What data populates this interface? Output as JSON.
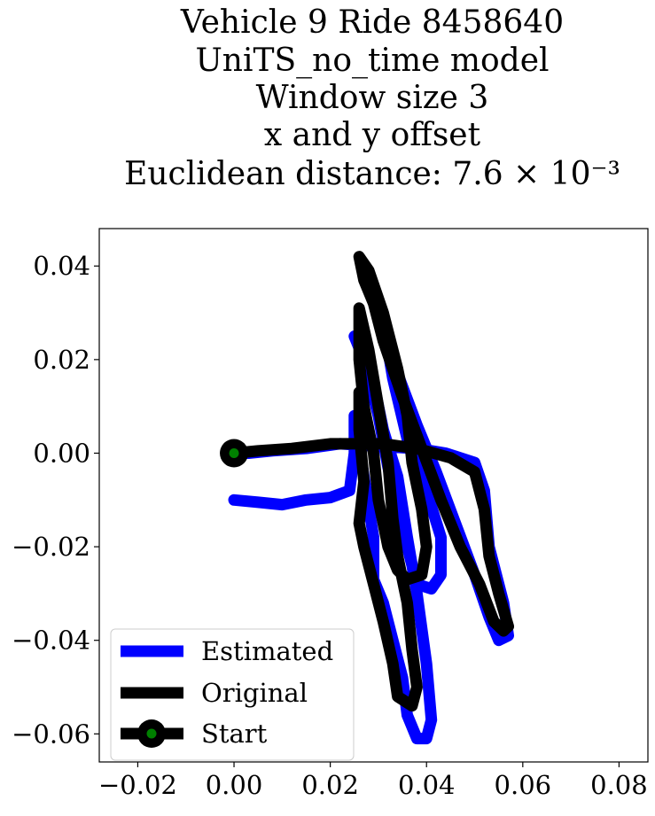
{
  "chart_data": {
    "type": "line",
    "title_lines": [
      "Vehicle 9 Ride 8458640",
      "UniTS_no_time model",
      "Window size 3",
      "x and y offset",
      "Euclidean distance: 7.6 × 10⁻³"
    ],
    "xlabel": "",
    "ylabel": "",
    "xlim": [
      -0.028,
      0.086
    ],
    "ylim": [
      -0.066,
      0.048
    ],
    "x_ticks": [
      {
        "value": -0.02,
        "label": "−0.02"
      },
      {
        "value": 0.0,
        "label": "0.00"
      },
      {
        "value": 0.02,
        "label": "0.02"
      },
      {
        "value": 0.04,
        "label": "0.04"
      },
      {
        "value": 0.06,
        "label": "0.06"
      },
      {
        "value": 0.08,
        "label": "0.08"
      }
    ],
    "y_ticks": [
      {
        "value": 0.04,
        "label": "0.04"
      },
      {
        "value": 0.02,
        "label": "0.02"
      },
      {
        "value": 0.0,
        "label": "0.00"
      },
      {
        "value": -0.02,
        "label": "−0.02"
      },
      {
        "value": -0.04,
        "label": "−0.04"
      },
      {
        "value": -0.06,
        "label": "−0.06"
      }
    ],
    "grid": false,
    "legend": {
      "placement": "lower-left",
      "entries": [
        {
          "label": "Estimated",
          "color": "#0000ff"
        },
        {
          "label": "Original",
          "color": "#000000"
        },
        {
          "label": "Start",
          "color": "#000000",
          "marker_color": "#008000"
        }
      ]
    },
    "series": [
      {
        "name": "Estimated",
        "color": "#0000ff",
        "points": [
          [
            0.0,
            -0.01
          ],
          [
            0.005,
            -0.0105
          ],
          [
            0.01,
            -0.011
          ],
          [
            0.015,
            -0.01
          ],
          [
            0.02,
            -0.0095
          ],
          [
            0.024,
            -0.008
          ],
          [
            0.025,
            0.0
          ],
          [
            0.025,
            0.008
          ],
          [
            0.027,
            -0.005
          ],
          [
            0.029,
            -0.018
          ],
          [
            0.029,
            -0.027
          ],
          [
            0.031,
            -0.032
          ],
          [
            0.033,
            -0.04
          ],
          [
            0.035,
            -0.048
          ],
          [
            0.036,
            -0.056
          ],
          [
            0.038,
            -0.061
          ],
          [
            0.04,
            -0.061
          ],
          [
            0.041,
            -0.057
          ],
          [
            0.04,
            -0.045
          ],
          [
            0.038,
            -0.03
          ],
          [
            0.036,
            -0.018
          ],
          [
            0.034,
            -0.005
          ],
          [
            0.031,
            0.005
          ],
          [
            0.029,
            0.015
          ],
          [
            0.027,
            0.022
          ],
          [
            0.025,
            0.025
          ],
          [
            0.027,
            0.02
          ],
          [
            0.03,
            0.008
          ],
          [
            0.032,
            -0.003
          ],
          [
            0.034,
            -0.012
          ],
          [
            0.036,
            -0.02
          ],
          [
            0.038,
            -0.028
          ],
          [
            0.041,
            -0.029
          ],
          [
            0.043,
            -0.026
          ],
          [
            0.043,
            -0.018
          ],
          [
            0.04,
            -0.008
          ],
          [
            0.036,
            0.003
          ],
          [
            0.033,
            0.016
          ],
          [
            0.031,
            0.028
          ],
          [
            0.029,
            0.035
          ],
          [
            0.031,
            0.028
          ],
          [
            0.034,
            0.017
          ],
          [
            0.038,
            0.006
          ],
          [
            0.042,
            -0.004
          ],
          [
            0.046,
            -0.015
          ],
          [
            0.05,
            -0.026
          ],
          [
            0.053,
            -0.035
          ],
          [
            0.055,
            -0.04
          ],
          [
            0.057,
            -0.039
          ],
          [
            0.056,
            -0.032
          ],
          [
            0.053,
            -0.02
          ],
          [
            0.052,
            -0.008
          ],
          [
            0.05,
            -0.002
          ],
          [
            0.044,
            0.0
          ],
          [
            0.038,
            0.001
          ],
          [
            0.03,
            0.0015
          ],
          [
            0.022,
            0.002
          ],
          [
            0.015,
            0.001
          ],
          [
            0.008,
            0.0005
          ],
          [
            0.003,
            0.0
          ],
          [
            0.0,
            0.0
          ]
        ]
      },
      {
        "name": "Original",
        "color": "#000000",
        "points": [
          [
            0.0,
            0.0
          ],
          [
            0.005,
            0.0005
          ],
          [
            0.012,
            0.001
          ],
          [
            0.02,
            0.002
          ],
          [
            0.026,
            0.002
          ],
          [
            0.031,
            0.002
          ],
          [
            0.038,
            0.001
          ],
          [
            0.045,
            -0.001
          ],
          [
            0.05,
            -0.004
          ],
          [
            0.052,
            -0.012
          ],
          [
            0.053,
            -0.022
          ],
          [
            0.055,
            -0.03
          ],
          [
            0.057,
            -0.037
          ],
          [
            0.056,
            -0.038
          ],
          [
            0.054,
            -0.036
          ],
          [
            0.051,
            -0.028
          ],
          [
            0.047,
            -0.02
          ],
          [
            0.043,
            -0.01
          ],
          [
            0.039,
            0.001
          ],
          [
            0.035,
            0.012
          ],
          [
            0.031,
            0.024
          ],
          [
            0.029,
            0.032
          ],
          [
            0.027,
            0.037
          ],
          [
            0.026,
            0.042
          ],
          [
            0.028,
            0.039
          ],
          [
            0.031,
            0.03
          ],
          [
            0.034,
            0.018
          ],
          [
            0.036,
            0.008
          ],
          [
            0.037,
            -0.002
          ],
          [
            0.039,
            -0.012
          ],
          [
            0.04,
            -0.02
          ],
          [
            0.039,
            -0.026
          ],
          [
            0.036,
            -0.027
          ],
          [
            0.034,
            -0.025
          ],
          [
            0.032,
            -0.02
          ],
          [
            0.03,
            -0.01
          ],
          [
            0.029,
            0.0
          ],
          [
            0.027,
            0.01
          ],
          [
            0.026,
            0.02
          ],
          [
            0.026,
            0.031
          ],
          [
            0.028,
            0.022
          ],
          [
            0.03,
            0.01
          ],
          [
            0.032,
            -0.002
          ],
          [
            0.033,
            -0.014
          ],
          [
            0.034,
            -0.022
          ],
          [
            0.036,
            -0.032
          ],
          [
            0.037,
            -0.042
          ],
          [
            0.038,
            -0.05
          ],
          [
            0.037,
            -0.054
          ],
          [
            0.034,
            -0.052
          ],
          [
            0.033,
            -0.045
          ],
          [
            0.031,
            -0.036
          ],
          [
            0.029,
            -0.028
          ],
          [
            0.027,
            -0.02
          ],
          [
            0.026,
            -0.015
          ],
          [
            0.027,
            -0.006
          ],
          [
            0.026,
            0.005
          ],
          [
            0.026,
            0.013
          ]
        ]
      }
    ],
    "start_point": {
      "name": "Start",
      "x": 0.0,
      "y": 0.0,
      "marker_color": "#008000"
    }
  }
}
